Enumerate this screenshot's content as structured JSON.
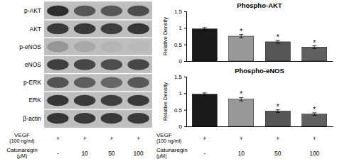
{
  "chart_data": [
    {
      "type": "heatmap",
      "rows": [
        "p-AKT",
        "AKT",
        "p-eNOS",
        "eNOS",
        "p-ERK",
        "ERK",
        "β-actin"
      ],
      "cells": [
        [
          0.15,
          0.32,
          0.32,
          0.28
        ],
        [
          0.2,
          0.2,
          0.22,
          0.18
        ],
        [
          0.58,
          0.65,
          0.7,
          0.72
        ],
        [
          0.22,
          0.25,
          0.28,
          0.25
        ],
        [
          0.3,
          0.35,
          0.38,
          0.32
        ],
        [
          0.18,
          0.2,
          0.22,
          0.2
        ],
        [
          0.18,
          0.2,
          0.2,
          0.2
        ]
      ],
      "x_label_rows": [
        {
          "label": "VEGF",
          "unit": "(100 ng/ml)",
          "values": [
            "+",
            "+",
            "+",
            "+"
          ]
        },
        {
          "label": "Catunaregin",
          "unit": "(μM)",
          "values": [
            "-",
            "10",
            "50",
            "100"
          ]
        }
      ]
    },
    {
      "type": "bar",
      "title": "Phospho-AKT",
      "ylabel": "Relative Density",
      "values": [
        0.97,
        0.75,
        0.58,
        0.42
      ],
      "errors": [
        0.04,
        0.05,
        0.04,
        0.04
      ],
      "significance": [
        null,
        "*",
        "*",
        "*"
      ],
      "colors": [
        "#1a1a1a",
        "#999999",
        "#555555",
        "#606060"
      ],
      "ylim": [
        0,
        1.5
      ],
      "yticks": [
        0,
        0.5,
        1,
        1.5
      ],
      "grid": false,
      "tick_labels": "y"
    },
    {
      "type": "bar",
      "title": "Phospho-eNOS",
      "ylabel": "Relative Density",
      "values": [
        0.97,
        0.82,
        0.46,
        0.37
      ],
      "errors": [
        0.04,
        0.05,
        0.04,
        0.04
      ],
      "significance": [
        null,
        "*",
        "*",
        "*"
      ],
      "colors": [
        "#1a1a1a",
        "#999999",
        "#555555",
        "#606060"
      ],
      "ylim": [
        0,
        1.5
      ],
      "yticks": [
        0,
        0.5,
        1,
        1.5
      ],
      "grid": false,
      "tick_labels": "y",
      "x_label_rows": [
        {
          "label": "VEGF",
          "unit": "(100 ng/ml)",
          "values": [
            "+",
            "+",
            "+",
            "+"
          ]
        },
        {
          "label": "Catunaregin",
          "unit": "(μM)",
          "values": [
            "-",
            "10",
            "50",
            "100"
          ]
        }
      ]
    }
  ]
}
